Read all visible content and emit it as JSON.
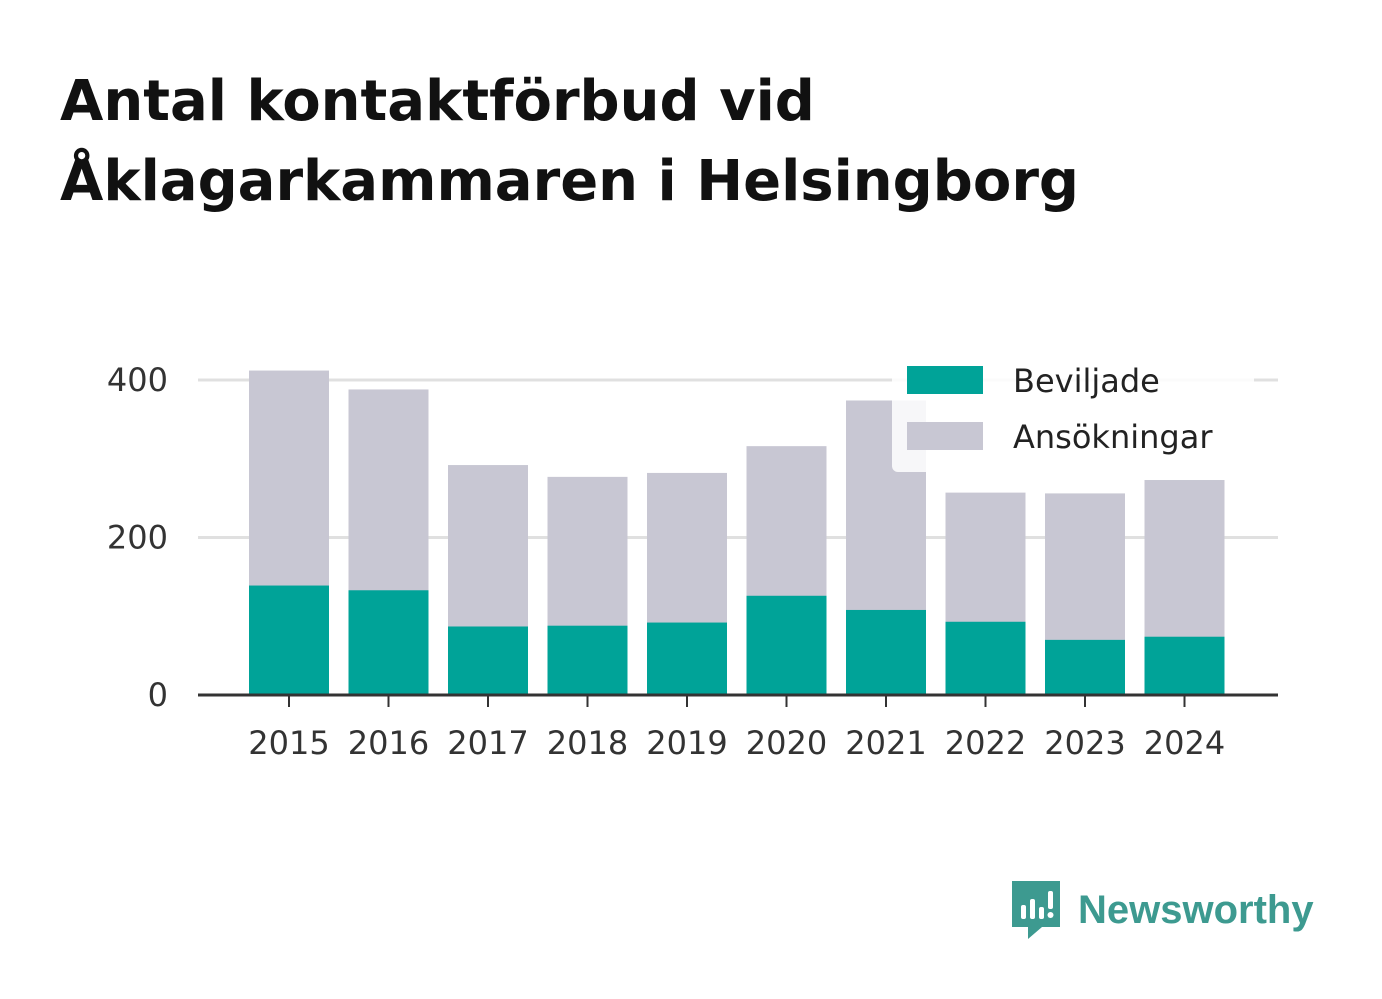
{
  "title": {
    "line1": "Antal kontaktförbud vid",
    "line2": "Åklagarkammaren i Helsingborg"
  },
  "brand": {
    "name": "Newsworthy",
    "color": "#3d9a90"
  },
  "chart_data": {
    "type": "bar",
    "stacked": "overlay",
    "categories": [
      "2015",
      "2016",
      "2017",
      "2018",
      "2019",
      "2020",
      "2021",
      "2022",
      "2023",
      "2024"
    ],
    "series": [
      {
        "name": "Beviljade",
        "color": "#00a398",
        "values": [
          139,
          133,
          87,
          88,
          92,
          126,
          108,
          93,
          70,
          74
        ]
      },
      {
        "name": "Ansökningar",
        "color": "#c8c7d3",
        "values": [
          412,
          388,
          292,
          277,
          282,
          316,
          374,
          257,
          256,
          273
        ]
      }
    ],
    "y_ticks": [
      0,
      200,
      400
    ],
    "ylim": [
      0,
      412
    ],
    "legend_position": "top-right",
    "grid": "horizontal"
  }
}
